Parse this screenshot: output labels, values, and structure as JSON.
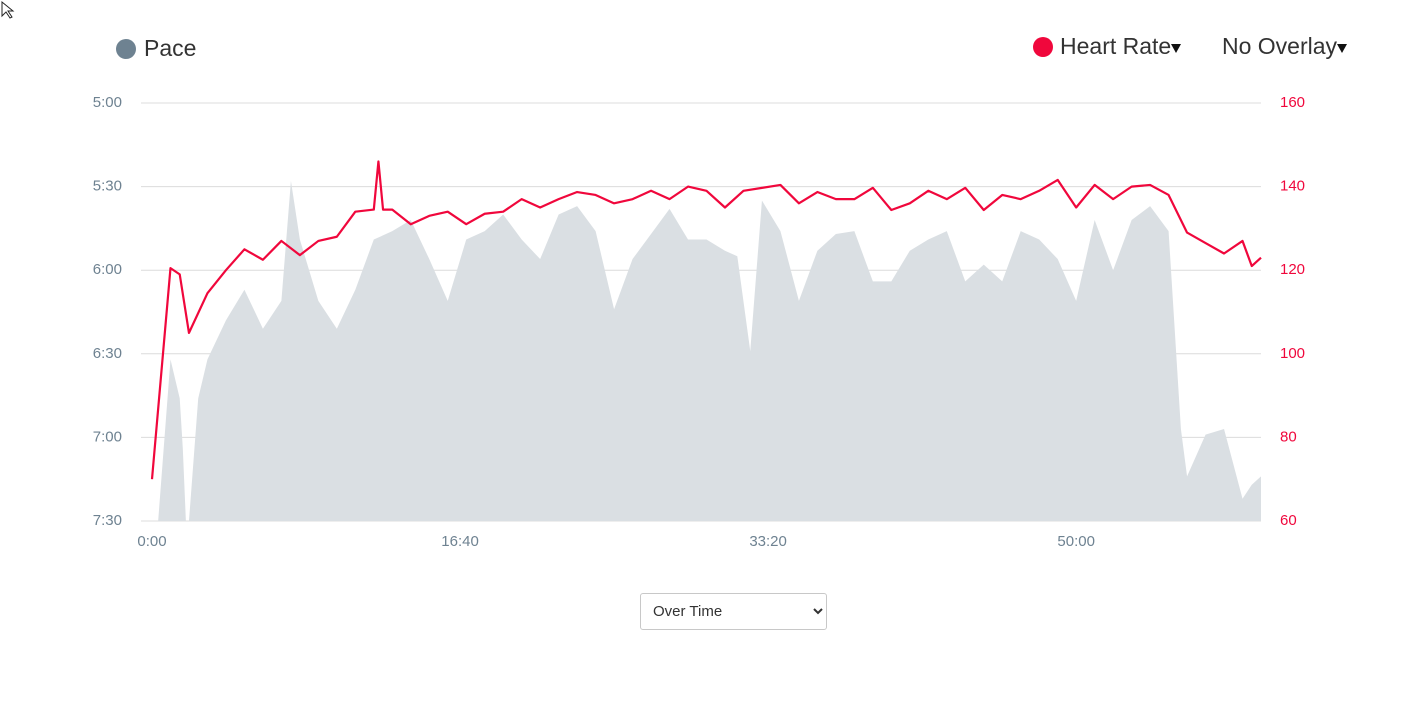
{
  "chart_data": {
    "type": "area-line",
    "legend_items": [
      {
        "name": "Pace",
        "legend_color": "#6e8291"
      },
      {
        "name": "Heart Rate",
        "legend_color": "#f0073c"
      }
    ],
    "series": [
      {
        "name": "Pace",
        "type": "area",
        "axis": "y",
        "color": "#dadfe3",
        "x": [
          20,
          60,
          90,
          100,
          110,
          120,
          150,
          180,
          240,
          300,
          360,
          420,
          451,
          480,
          540,
          600,
          660,
          720,
          780,
          840,
          900,
          960,
          1020,
          1080,
          1140,
          1200,
          1260,
          1320,
          1380,
          1440,
          1500,
          1560,
          1620,
          1680,
          1740,
          1800,
          1860,
          1900,
          1942,
          1980,
          2040,
          2100,
          2160,
          2220,
          2280,
          2340,
          2400,
          2460,
          2520,
          2580,
          2640,
          2700,
          2760,
          2820,
          2880,
          2940,
          3000,
          3060,
          3120,
          3180,
          3240,
          3300,
          3340,
          3360,
          3420,
          3480,
          3540,
          3570,
          3600
        ],
        "values": [
          450,
          392,
          406,
          424,
          450,
          450,
          406,
          392,
          378,
          367,
          381,
          371,
          328,
          349,
          371,
          381,
          367,
          349,
          346,
          342,
          356,
          371,
          349,
          346,
          340,
          349,
          356,
          340,
          337,
          346,
          374,
          356,
          347,
          338,
          349,
          349,
          353,
          355,
          389,
          335,
          346,
          371,
          353,
          347,
          346,
          364,
          364,
          353,
          349,
          346,
          364,
          358,
          364,
          346,
          349,
          356,
          371,
          342,
          360,
          342,
          337,
          346,
          417,
          434,
          419,
          417,
          442,
          437,
          434
        ]
      },
      {
        "name": "Heart Rate",
        "type": "line",
        "axis": "y2",
        "color": "#f0073c",
        "x": [
          0,
          60,
          90,
          120,
          180,
          240,
          300,
          360,
          420,
          480,
          540,
          600,
          660,
          720,
          735,
          750,
          780,
          840,
          900,
          960,
          1020,
          1080,
          1140,
          1200,
          1260,
          1320,
          1380,
          1440,
          1500,
          1560,
          1620,
          1680,
          1740,
          1800,
          1860,
          1920,
          1980,
          2040,
          2100,
          2160,
          2220,
          2280,
          2340,
          2400,
          2460,
          2520,
          2580,
          2640,
          2700,
          2760,
          2820,
          2880,
          2940,
          3000,
          3060,
          3120,
          3180,
          3240,
          3300,
          3360,
          3420,
          3480,
          3540,
          3570,
          3600
        ],
        "values": [
          70,
          120.5,
          119,
          105,
          114.5,
          120,
          125,
          122.5,
          127,
          123.6,
          127,
          128,
          134,
          134.5,
          146,
          134.5,
          134.5,
          131,
          133,
          134,
          131,
          133.5,
          134,
          137,
          135,
          137,
          138.7,
          138,
          136,
          137,
          139,
          137,
          140,
          139,
          135,
          139,
          139.7,
          140.4,
          136,
          138.7,
          137,
          137,
          139.7,
          134.4,
          136,
          139,
          137,
          139.7,
          134.4,
          138,
          137,
          139,
          141.6,
          135,
          140.4,
          137,
          140,
          140.4,
          138,
          129,
          126.5,
          124,
          127,
          121,
          123
        ]
      }
    ],
    "xlim": [
      0,
      3600
    ],
    "xticks": [
      {
        "value": 0,
        "label": "0:00"
      },
      {
        "value": 1000,
        "label": "16:40"
      },
      {
        "value": 2000,
        "label": "33:20"
      },
      {
        "value": 3000,
        "label": "50:00"
      }
    ],
    "ylim": [
      300,
      450
    ],
    "invert_y": true,
    "yticks": [
      {
        "value": 300,
        "label": "5:00"
      },
      {
        "value": 330,
        "label": "5:30"
      },
      {
        "value": 360,
        "label": "6:00"
      },
      {
        "value": 390,
        "label": "6:30"
      },
      {
        "value": 420,
        "label": "7:00"
      },
      {
        "value": 450,
        "label": "7:30"
      }
    ],
    "y2lim": [
      60,
      160
    ],
    "y2ticks": [
      60,
      80,
      100,
      120,
      140,
      160
    ],
    "grid": true
  },
  "controls": {
    "overlay": "No Overlay",
    "view": "Over Time"
  }
}
